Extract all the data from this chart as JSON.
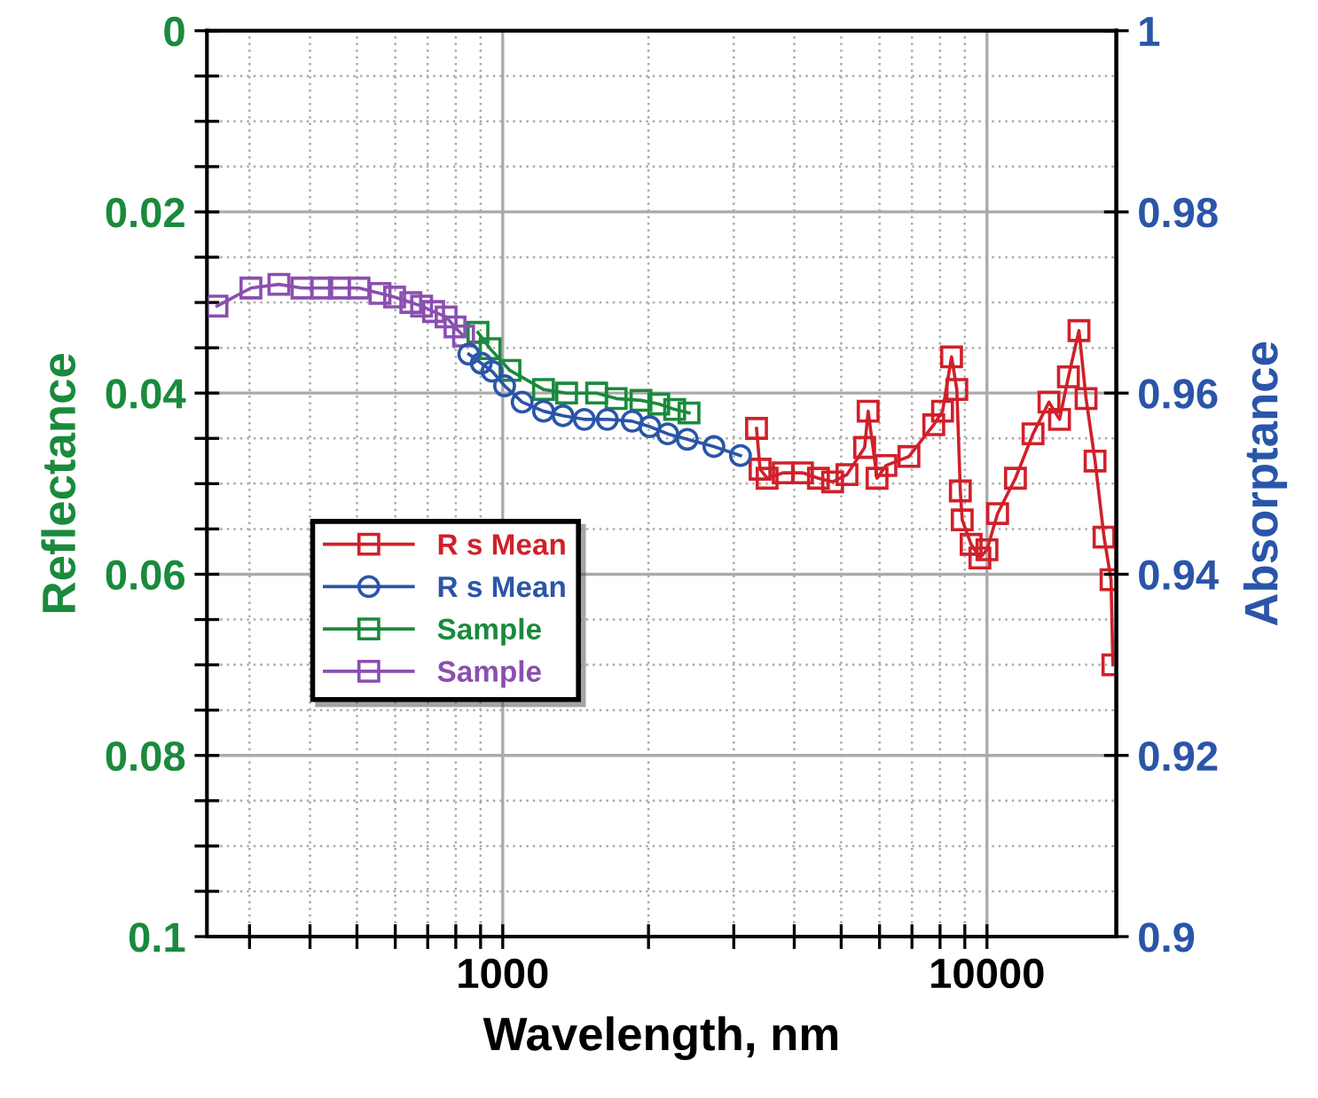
{
  "chart_data": {
    "type": "line",
    "xlabel": "Wavelength, nm",
    "ylabel": "Reflectance",
    "y2label": "Absorptance",
    "log": "x",
    "grid": true,
    "legend": "center left",
    "xlim": [
      245,
      18500
    ],
    "xticks": [
      {
        "value": 300,
        "label": null
      },
      {
        "value": 400,
        "label": null
      },
      {
        "value": 500,
        "label": null
      },
      {
        "value": 600,
        "label": null
      },
      {
        "value": 700,
        "label": null
      },
      {
        "value": 800,
        "label": null
      },
      {
        "value": 900,
        "label": null
      },
      1000,
      {
        "value": 2000,
        "label": null
      },
      {
        "value": 3000,
        "label": null
      },
      {
        "value": 4000,
        "label": null
      },
      {
        "value": 5000,
        "label": null
      },
      {
        "value": 6000,
        "label": null
      },
      {
        "value": 7000,
        "label": null
      },
      {
        "value": 8000,
        "label": null
      },
      {
        "value": 9000,
        "label": null
      },
      10000
    ],
    "ylim": [
      0.1,
      0
    ],
    "yticks": [
      0,
      {
        "value": 0.005,
        "label": null
      },
      {
        "value": 0.01,
        "label": null
      },
      {
        "value": 0.015,
        "label": null
      },
      0.02,
      {
        "value": 0.025,
        "label": null
      },
      {
        "value": 0.03,
        "label": null
      },
      {
        "value": 0.035,
        "label": null
      },
      0.04,
      {
        "value": 0.045,
        "label": null
      },
      {
        "value": 0.05,
        "label": null
      },
      {
        "value": 0.055,
        "label": null
      },
      0.06,
      {
        "value": 0.065,
        "label": null
      },
      {
        "value": 0.07,
        "label": null
      },
      {
        "value": 0.075,
        "label": null
      },
      0.08,
      {
        "value": 0.085,
        "label": null
      },
      {
        "value": 0.09,
        "label": null
      },
      {
        "value": 0.095,
        "label": null
      },
      0.1
    ],
    "y2lim": [
      0.9,
      1
    ],
    "y2ticks": [
      0.9,
      0.92,
      0.94,
      0.96,
      0.98,
      1
    ],
    "series": [
      {
        "name": "R s Mean",
        "color": "#d0202a",
        "marker": "square",
        "x": [
          3343,
          3400,
          3516,
          3796,
          4159,
          4487,
          4800,
          5140,
          5590,
          5684,
          5930,
          6185,
          6900,
          7765,
          8096,
          8450,
          8665,
          8810,
          8890,
          9275,
          9670,
          10000,
          10520,
          11450,
          12450,
          13430,
          14120,
          14730,
          15490,
          16020,
          16720,
          17450,
          18040,
          18200
        ],
        "values": [
          0.0439,
          0.0484,
          0.0494,
          0.0488,
          0.0488,
          0.0494,
          0.0498,
          0.049,
          0.046,
          0.042,
          0.0494,
          0.048,
          0.047,
          0.0435,
          0.042,
          0.036,
          0.0396,
          0.0508,
          0.054,
          0.0567,
          0.0582,
          0.0573,
          0.0533,
          0.0494,
          0.0445,
          0.041,
          0.0429,
          0.0382,
          0.0331,
          0.0406,
          0.0475,
          0.0559,
          0.0606,
          0.07
        ]
      },
      {
        "name": "R s Mean",
        "color": "#2a55a8",
        "marker": "circle",
        "axis": "y2",
        "x": [
          851,
          903,
          951,
          1009,
          1097,
          1214,
          1332,
          1474,
          1644,
          1851,
          2012,
          2191,
          2405,
          2730,
          3097
        ],
        "values": [
          0.9643,
          0.9633,
          0.9624,
          0.9608,
          0.959,
          0.958,
          0.9575,
          0.9571,
          0.9571,
          0.9569,
          0.9563,
          0.9555,
          0.9549,
          0.9541,
          0.9531
        ]
      },
      {
        "name": "Sample",
        "color": "#1a8a3c",
        "marker": "square",
        "x": [
          889,
          942,
          1035,
          1214,
          1355,
          1563,
          1715,
          1930,
          2100,
          2265,
          2425
        ],
        "values": [
          0.0333,
          0.0351,
          0.0375,
          0.0396,
          0.04,
          0.04,
          0.0406,
          0.0408,
          0.0412,
          0.0418,
          0.0422
        ]
      },
      {
        "name": "Sample",
        "color": "#8a4fb0",
        "marker": "square",
        "x": [
          257,
          302,
          345,
          385,
          423,
          460,
          505,
          558,
          598,
          646,
          680,
          720,
          764,
          797,
          830
        ],
        "values": [
          0.0304,
          0.0284,
          0.028,
          0.0284,
          0.0284,
          0.0284,
          0.0284,
          0.029,
          0.0294,
          0.03,
          0.0304,
          0.031,
          0.0316,
          0.0327,
          0.0337
        ]
      }
    ]
  }
}
